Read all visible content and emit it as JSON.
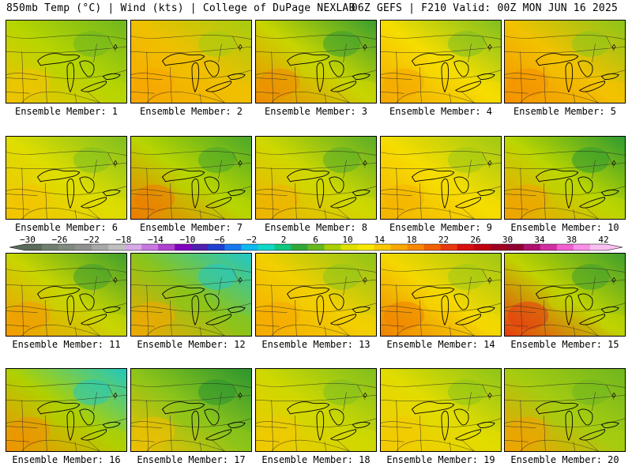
{
  "header": {
    "left": "850mb Temp (°C) | Wind (kts) | College of DuPage NEXLAB",
    "right": "06Z GEFS | F210 Valid: 00Z MON JUN 16 2025"
  },
  "members": [
    {
      "label": "Ensemble Member: 1",
      "base": "#b8d500",
      "warm": "#f2c200",
      "cool": "#6fb620"
    },
    {
      "label": "Ensemble Member: 2",
      "base": "#f0c000",
      "warm": "#f7a500",
      "cool": "#a6cc10"
    },
    {
      "label": "Ensemble Member: 3",
      "base": "#c8d500",
      "warm": "#f08a00",
      "cool": "#3a9e30"
    },
    {
      "label": "Ensemble Member: 4",
      "base": "#f6dd00",
      "warm": "#f4a500",
      "cool": "#7fbf20"
    },
    {
      "label": "Ensemble Member: 5",
      "base": "#f2c200",
      "warm": "#f49000",
      "cool": "#8cc41a"
    },
    {
      "label": "Ensemble Member: 6",
      "base": "#dedd00",
      "warm": "#f4c200",
      "cool": "#7fbf20"
    },
    {
      "label": "Ensemble Member: 7",
      "base": "#b8d500",
      "warm": "#f07800",
      "cool": "#4aa82a"
    },
    {
      "label": "Ensemble Member: 8",
      "base": "#cfd800",
      "warm": "#f2b000",
      "cool": "#5aad28"
    },
    {
      "label": "Ensemble Member: 9",
      "base": "#f6dd00",
      "warm": "#f4b000",
      "cool": "#9ec815"
    },
    {
      "label": "Ensemble Member: 10",
      "base": "#bcd600",
      "warm": "#f4a000",
      "cool": "#2f9a30"
    },
    {
      "label": "Ensemble Member: 11",
      "base": "#c8d500",
      "warm": "#f49a00",
      "cool": "#3f9f2e"
    },
    {
      "label": "Ensemble Member: 12",
      "base": "#8cc41a",
      "warm": "#f4a800",
      "cool": "#20c8c8"
    },
    {
      "label": "Ensemble Member: 13",
      "base": "#f2d000",
      "warm": "#f5a800",
      "cool": "#8cc41a"
    },
    {
      "label": "Ensemble Member: 14",
      "base": "#f4d800",
      "warm": "#f08000",
      "cool": "#9ec815"
    },
    {
      "label": "Ensemble Member: 15",
      "base": "#c0d300",
      "warm": "#e83a10",
      "cool": "#3f9f2e"
    },
    {
      "label": "Ensemble Member: 16",
      "base": "#b0d000",
      "warm": "#f29000",
      "cool": "#20c8c0"
    },
    {
      "label": "Ensemble Member: 17",
      "base": "#8cc41a",
      "warm": "#f4c000",
      "cool": "#2a9530"
    },
    {
      "label": "Ensemble Member: 18",
      "base": "#cfd800",
      "warm": "#f2c800",
      "cool": "#7fbf20"
    },
    {
      "label": "Ensemble Member: 19",
      "base": "#e2dc00",
      "warm": "#f4c800",
      "cool": "#8cc41a"
    },
    {
      "label": "Ensemble Member: 20",
      "base": "#a6cc10",
      "warm": "#f4a000",
      "cool": "#6fb620"
    }
  ],
  "colorbar": {
    "ticks": [
      "-30",
      "-26",
      "-22",
      "-18",
      "-14",
      "-10",
      "-6",
      "-2",
      "2",
      "6",
      "10",
      "14",
      "18",
      "22",
      "26",
      "30",
      "34",
      "38",
      "42"
    ],
    "colors": [
      "#5a6b5a",
      "#6f8070",
      "#808a80",
      "#909090",
      "#a8a8a8",
      "#c0c0c0",
      "#d8a8e8",
      "#c878e0",
      "#b040d0",
      "#8000c0",
      "#5020b0",
      "#2040d0",
      "#1878f0",
      "#10b8f0",
      "#10d8c8",
      "#10c880",
      "#30a838",
      "#68b820",
      "#a8d000",
      "#e0e000",
      "#f8e800",
      "#f8c800",
      "#f8a800",
      "#f88800",
      "#f06000",
      "#e83810",
      "#d81010",
      "#c00010",
      "#a00020",
      "#900030",
      "#b01070",
      "#d030a0",
      "#f060d0",
      "#f890e8",
      "#f8c0f0"
    ]
  }
}
